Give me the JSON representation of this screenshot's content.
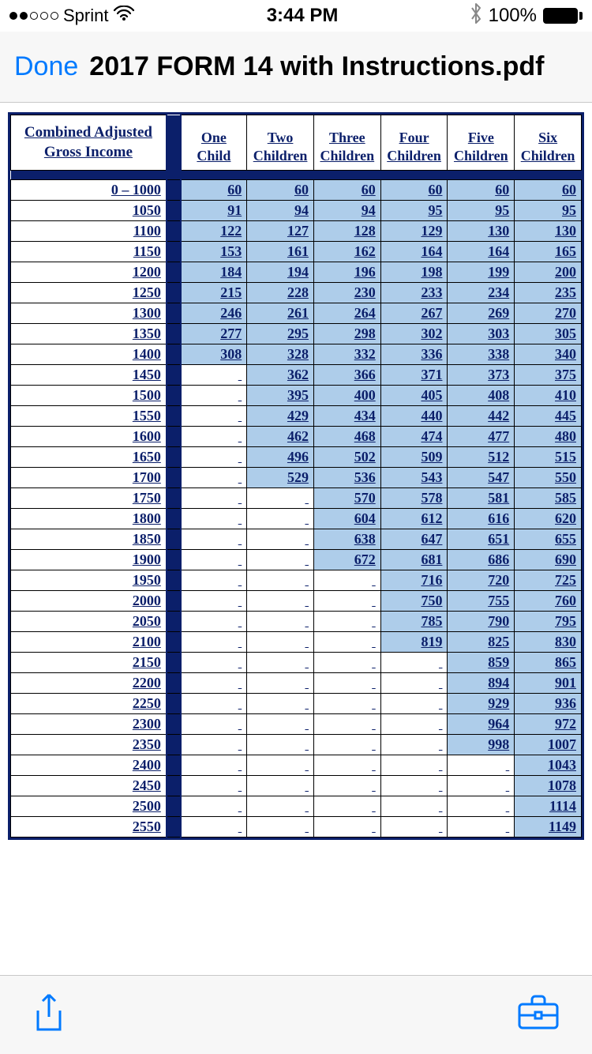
{
  "status": {
    "carrier": "Sprint",
    "time": "3:44 PM",
    "battery": "100%"
  },
  "nav": {
    "done": "Done",
    "title": "2017 FORM 14 with Instructions.pdf"
  },
  "table": {
    "income_header": "Combined Adjusted Gross Income",
    "columns": [
      "One Child",
      "Two Children",
      "Three Children",
      "Four Children",
      "Five Children",
      "Six Children"
    ],
    "rows": [
      {
        "income": "0 – 1000",
        "vals": [
          60,
          60,
          60,
          60,
          60,
          60
        ]
      },
      {
        "income": "1050",
        "vals": [
          91,
          94,
          94,
          95,
          95,
          95
        ]
      },
      {
        "income": "1100",
        "vals": [
          122,
          127,
          128,
          129,
          130,
          130
        ]
      },
      {
        "income": "1150",
        "vals": [
          153,
          161,
          162,
          164,
          164,
          165
        ]
      },
      {
        "income": "1200",
        "vals": [
          184,
          194,
          196,
          198,
          199,
          200
        ]
      },
      {
        "income": "1250",
        "vals": [
          215,
          228,
          230,
          233,
          234,
          235
        ]
      },
      {
        "income": "1300",
        "vals": [
          246,
          261,
          264,
          267,
          269,
          270
        ]
      },
      {
        "income": "1350",
        "vals": [
          277,
          295,
          298,
          302,
          303,
          305
        ]
      },
      {
        "income": "1400",
        "vals": [
          308,
          328,
          332,
          336,
          338,
          340
        ]
      },
      {
        "income": "1450",
        "vals": [
          null,
          362,
          366,
          371,
          373,
          375
        ]
      },
      {
        "income": "1500",
        "vals": [
          null,
          395,
          400,
          405,
          408,
          410
        ]
      },
      {
        "income": "1550",
        "vals": [
          null,
          429,
          434,
          440,
          442,
          445
        ]
      },
      {
        "income": "1600",
        "vals": [
          null,
          462,
          468,
          474,
          477,
          480
        ]
      },
      {
        "income": "1650",
        "vals": [
          null,
          496,
          502,
          509,
          512,
          515
        ]
      },
      {
        "income": "1700",
        "vals": [
          null,
          529,
          536,
          543,
          547,
          550
        ]
      },
      {
        "income": "1750",
        "vals": [
          null,
          null,
          570,
          578,
          581,
          585
        ]
      },
      {
        "income": "1800",
        "vals": [
          null,
          null,
          604,
          612,
          616,
          620
        ]
      },
      {
        "income": "1850",
        "vals": [
          null,
          null,
          638,
          647,
          651,
          655
        ]
      },
      {
        "income": "1900",
        "vals": [
          null,
          null,
          672,
          681,
          686,
          690
        ]
      },
      {
        "income": "1950",
        "vals": [
          null,
          null,
          null,
          716,
          720,
          725
        ]
      },
      {
        "income": "2000",
        "vals": [
          null,
          null,
          null,
          750,
          755,
          760
        ]
      },
      {
        "income": "2050",
        "vals": [
          null,
          null,
          null,
          785,
          790,
          795
        ]
      },
      {
        "income": "2100",
        "vals": [
          null,
          null,
          null,
          819,
          825,
          830
        ]
      },
      {
        "income": "2150",
        "vals": [
          null,
          null,
          null,
          null,
          859,
          865
        ]
      },
      {
        "income": "2200",
        "vals": [
          null,
          null,
          null,
          null,
          894,
          901
        ]
      },
      {
        "income": "2250",
        "vals": [
          null,
          null,
          null,
          null,
          929,
          936
        ]
      },
      {
        "income": "2300",
        "vals": [
          null,
          null,
          null,
          null,
          964,
          972
        ]
      },
      {
        "income": "2350",
        "vals": [
          null,
          null,
          null,
          null,
          998,
          1007
        ]
      },
      {
        "income": "2400",
        "vals": [
          null,
          null,
          null,
          null,
          null,
          1043
        ]
      },
      {
        "income": "2450",
        "vals": [
          null,
          null,
          null,
          null,
          null,
          1078
        ]
      },
      {
        "income": "2500",
        "vals": [
          null,
          null,
          null,
          null,
          null,
          1114
        ]
      },
      {
        "income": "2550",
        "vals": [
          null,
          null,
          null,
          null,
          null,
          1149
        ]
      }
    ],
    "col_widths": [
      "200px",
      "18px",
      "85px",
      "85px",
      "85px",
      "85px",
      "85px",
      "85px"
    ],
    "filled_bg": "#aecdea",
    "empty_bg": "#ffffff",
    "link_color": "#0b1f6a",
    "border_color": "#000000",
    "divider_color": "#0b1f6a"
  }
}
